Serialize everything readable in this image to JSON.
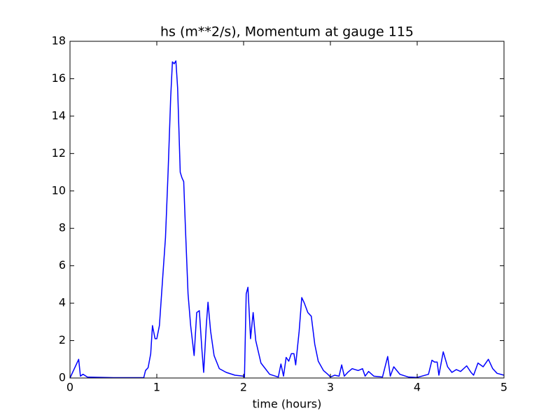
{
  "chart_data": {
    "type": "line",
    "title": "hs (m**2/s), Momentum at gauge 115",
    "x_label": "time (hours)",
    "x": [
      0,
      0.1,
      0.12,
      0.15,
      0.2,
      0.5,
      0.85,
      0.87,
      0.9,
      0.93,
      0.95,
      0.98,
      1.0,
      1.03,
      1.07,
      1.1,
      1.13,
      1.16,
      1.18,
      1.2,
      1.22,
      1.24,
      1.27,
      1.29,
      1.31,
      1.33,
      1.36,
      1.39,
      1.43,
      1.46,
      1.49,
      1.52,
      1.54,
      1.57,
      1.59,
      1.62,
      1.66,
      1.72,
      1.8,
      1.9,
      2.0,
      2.01,
      2.03,
      2.05,
      2.08,
      2.11,
      2.14,
      2.2,
      2.3,
      2.4,
      2.43,
      2.46,
      2.49,
      2.52,
      2.55,
      2.58,
      2.6,
      2.64,
      2.67,
      2.7,
      2.74,
      2.78,
      2.82,
      2.86,
      2.92,
      2.97,
      3.0,
      3.05,
      3.1,
      3.13,
      3.16,
      3.2,
      3.25,
      3.32,
      3.37,
      3.4,
      3.44,
      3.5,
      3.6,
      3.66,
      3.69,
      3.73,
      3.8,
      3.9,
      4.0,
      4.13,
      4.17,
      4.2,
      4.23,
      4.25,
      4.3,
      4.35,
      4.4,
      4.45,
      4.5,
      4.57,
      4.62,
      4.65,
      4.7,
      4.76,
      4.82,
      4.87,
      4.92,
      5.0
    ],
    "series": [
      {
        "color": "#0000ff",
        "values": [
          0,
          1.0,
          0.1,
          0.2,
          0.05,
          0.02,
          0.02,
          0.4,
          0.55,
          1.3,
          2.8,
          2.1,
          2.1,
          2.8,
          5.5,
          7.5,
          11,
          15,
          16.9,
          16.8,
          16.95,
          15.5,
          11,
          10.7,
          10.5,
          8,
          4.5,
          2.8,
          1.2,
          3.5,
          3.6,
          1.5,
          0.3,
          2.8,
          4.05,
          2.5,
          1.2,
          0.5,
          0.3,
          0.15,
          0.1,
          0.05,
          4.5,
          4.85,
          2.1,
          3.5,
          2,
          0.8,
          0.2,
          0.05,
          0.75,
          0.1,
          1.1,
          0.9,
          1.3,
          1.3,
          0.7,
          2.5,
          4.3,
          4.0,
          3.5,
          3.3,
          1.8,
          0.9,
          0.4,
          0.2,
          0.05,
          0.15,
          0.1,
          0.7,
          0.1,
          0.3,
          0.5,
          0.4,
          0.5,
          0.1,
          0.35,
          0.1,
          0.05,
          1.15,
          0.1,
          0.6,
          0.2,
          0.05,
          0.03,
          0.2,
          0.95,
          0.85,
          0.85,
          0.15,
          1.4,
          0.6,
          0.3,
          0.45,
          0.35,
          0.65,
          0.3,
          0.15,
          0.8,
          0.6,
          1.0,
          0.5,
          0.25,
          0.15
        ]
      }
    ],
    "hlines": [
      {
        "value": 0,
        "color": "#000000",
        "dash": true
      }
    ],
    "xlim": [
      0,
      5
    ],
    "xticks": [
      0,
      1,
      2,
      3,
      4,
      5
    ],
    "ylim": [
      0,
      18
    ],
    "yticks": [
      0,
      2,
      4,
      6,
      8,
      10,
      12,
      14,
      16,
      18
    ],
    "grid": false
  }
}
